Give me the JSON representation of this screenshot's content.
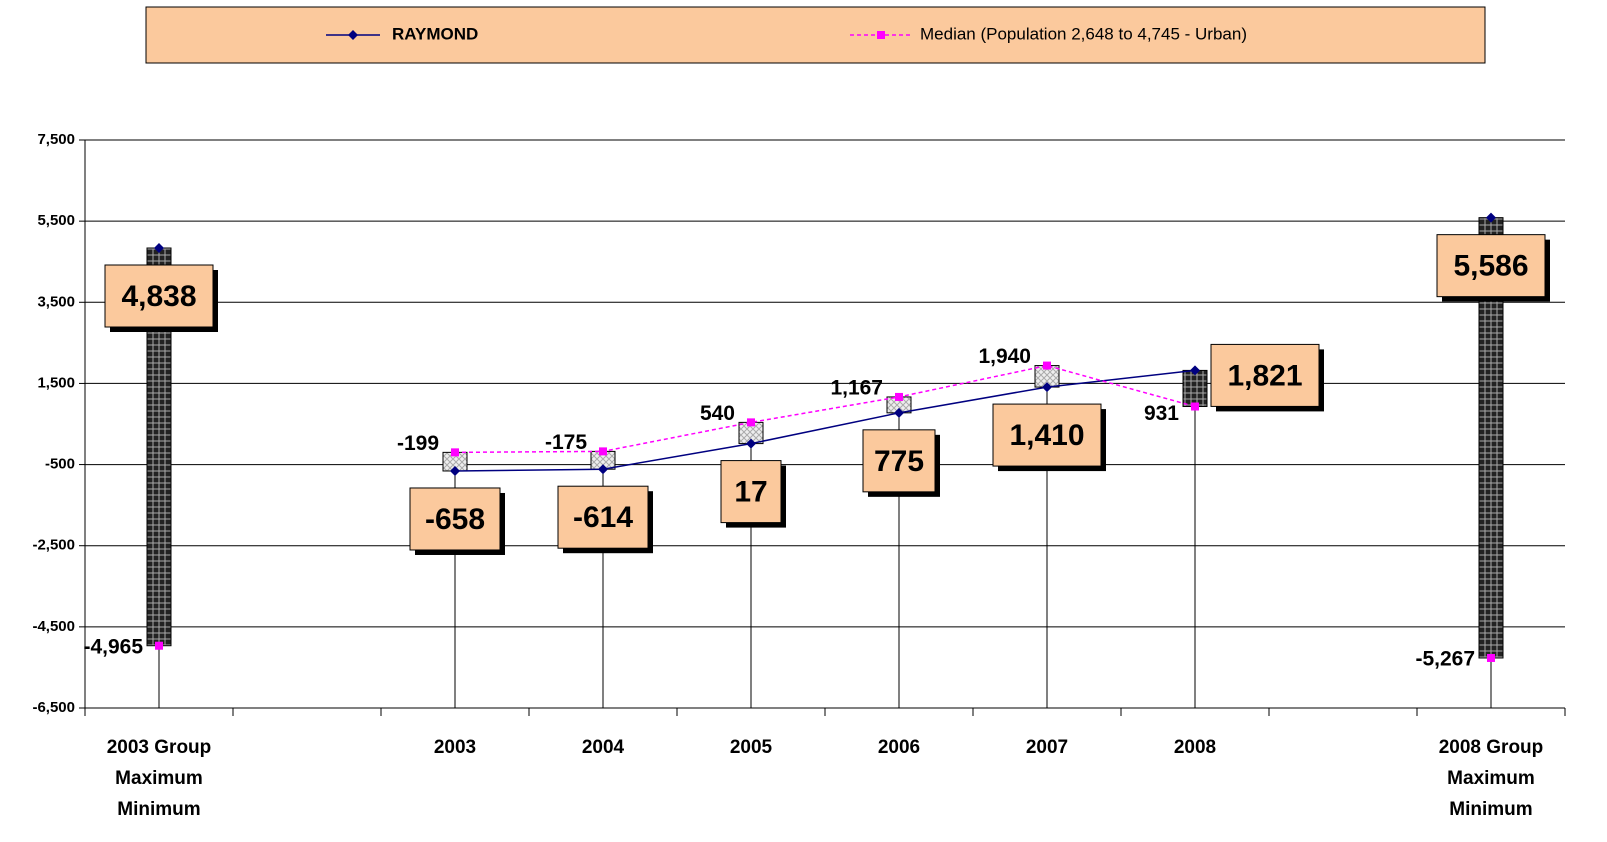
{
  "chart_data": {
    "type": "line",
    "categories": [
      [
        "2003 Group",
        "Maximum",
        "Minimum"
      ],
      null,
      "2003",
      "2004",
      "2005",
      "2006",
      "2007",
      "2008",
      null,
      [
        "2008 Group",
        "Maximum",
        "Minimum"
      ]
    ],
    "series": [
      {
        "name": "RAYMOND",
        "color": "#000080",
        "values": [
          4838,
          null,
          -658,
          -614,
          17,
          775,
          1410,
          1821,
          null,
          5586
        ],
        "value_labels": [
          "4,838",
          null,
          "-658",
          "-614",
          "17",
          "775",
          "1,410",
          "1,821",
          null,
          "5,586"
        ]
      },
      {
        "name": "Median (Population 2,648 to 4,745 - Urban)",
        "color": "#FF00FF",
        "values": [
          -4965,
          null,
          -199,
          -175,
          540,
          1167,
          1940,
          931,
          null,
          -5267
        ],
        "value_labels": [
          "-4,965",
          null,
          "-199",
          "-175",
          "540",
          "1,167",
          "1,940",
          "931",
          null,
          "-5,267"
        ]
      }
    ],
    "ylim": [
      -6500,
      7500
    ],
    "yticks": [
      {
        "value": -6500,
        "label": "-6,500"
      },
      {
        "value": -4500,
        "label": "-4,500"
      },
      {
        "value": -2500,
        "label": "-2,500"
      },
      -500,
      {
        "value": 1500,
        "label": "1,500"
      },
      {
        "value": 3500,
        "label": "3,500"
      },
      {
        "value": 5500,
        "label": "5,500"
      },
      {
        "value": 7500,
        "label": "7,500"
      }
    ],
    "grid": true,
    "legend": "top"
  }
}
